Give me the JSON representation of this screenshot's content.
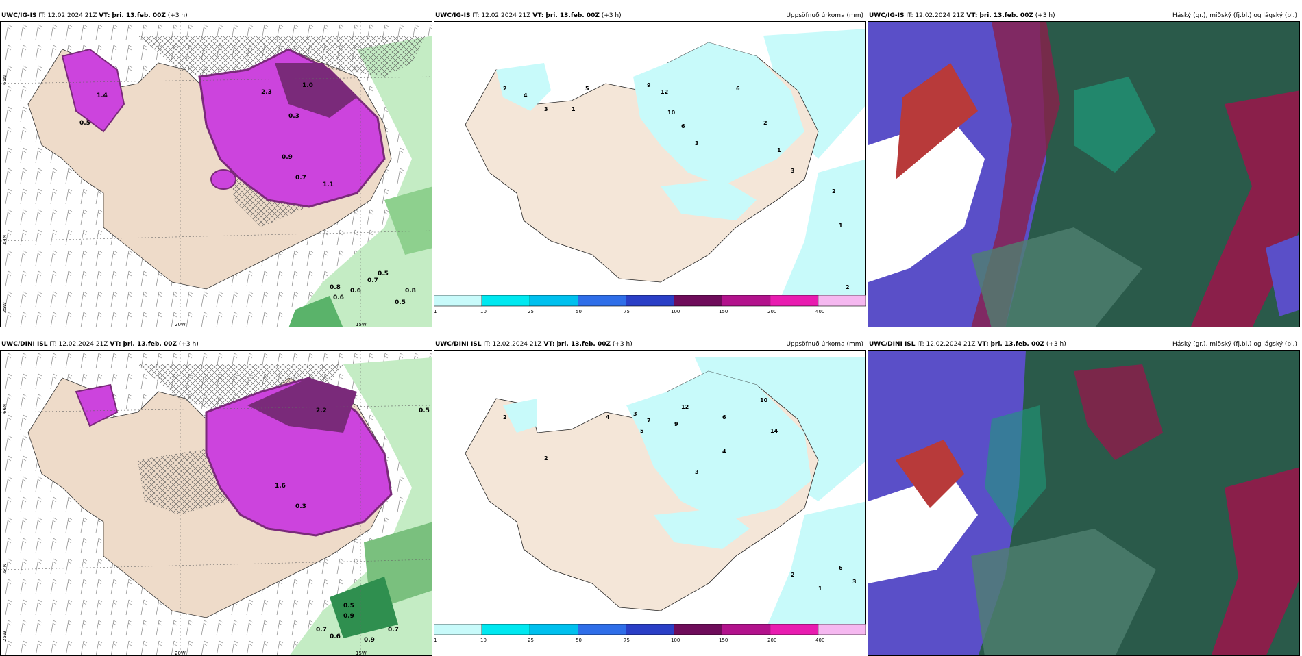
{
  "panels": {
    "top_left": {
      "model": "UWC/IG-IS",
      "it_label": "IT:",
      "it_value": "12.02.2024 21Z",
      "vt_label": "VT:",
      "vt_value": "þri. 13.feb. 00Z",
      "lead": "(+3 h)",
      "field": ""
    },
    "top_mid": {
      "model": "UWC/IG-IS",
      "it_label": "IT:",
      "it_value": "12.02.2024 21Z",
      "vt_label": "VT:",
      "vt_value": "þri. 13.feb. 00Z",
      "lead": "(+3 h)",
      "field": "Uppsöfnuð úrkoma (mm)"
    },
    "top_right": {
      "model": "UWC/IG-IS",
      "it_label": "IT:",
      "it_value": "12.02.2024 21Z",
      "vt_label": "VT:",
      "vt_value": "þri. 13.feb. 00Z",
      "lead": "(+3 h)",
      "field": "Háský (gr.), miðský (fj.bl.) og lágský (bl.)"
    },
    "bot_left": {
      "model": "UWC/DINI ISL",
      "it_label": "IT:",
      "it_value": "12.02.2024 21Z",
      "vt_label": "VT:",
      "vt_value": "þri. 13.feb. 00Z",
      "lead": "(+3 h)",
      "field": ""
    },
    "bot_mid": {
      "model": "UWC/DINI ISL",
      "it_label": "IT:",
      "it_value": "12.02.2024 21Z",
      "vt_label": "VT:",
      "vt_value": "þri. 13.feb. 00Z",
      "lead": "(+3 h)",
      "field": "Uppsöfnuð úrkoma (mm)"
    },
    "bot_right": {
      "model": "UWC/DINI ISL",
      "it_label": "IT:",
      "it_value": "12.02.2024 21Z",
      "vt_label": "VT:",
      "vt_value": "þri. 13.feb. 00Z",
      "lead": "(+3 h)",
      "field": "Háský (gr.), miðský (fj.bl.) og lágský (bl.)"
    }
  },
  "axes": {
    "lat_66": "66N",
    "lat_64": "64N",
    "lon_20": "20W",
    "lon_15": "15W",
    "lon_25": "25W"
  },
  "colorbar": {
    "ticks": [
      "1",
      "10",
      "25",
      "50",
      "75",
      "100",
      "150",
      "200",
      "400"
    ],
    "colors": [
      "#c8fafa",
      "#00e8f0",
      "#00c0ee",
      "#2f6ee8",
      "#2a3fc6",
      "#6e0c5a",
      "#b2128c",
      "#e81cb0",
      "#f5b8f0"
    ]
  },
  "colors": {
    "land": "#f4e6d8",
    "precip_light": "#b8f4f8",
    "snow_magenta": "#cc44dd",
    "snow_dark": "#7a2a7a",
    "rain_green": "#a6e6a6",
    "rain_dark": "#2f8f4f",
    "cloud_high": "#2a5a4a",
    "cloud_mid": "#5a4fc8",
    "cloud_low": "#8a1f4a"
  },
  "tl_labels": [
    "1.4",
    "0.5",
    "2.3",
    "1.0",
    "0.9",
    "0.7",
    "0.3",
    "1.1",
    "0.8",
    "0.6",
    "0.5",
    "0.7",
    "0.6",
    "0.5",
    "0.8"
  ],
  "bl_labels": [
    "0.5",
    "0.9",
    "0.7",
    "0.6",
    "0.9",
    "0.7",
    "1.6",
    "2.2",
    "0.3",
    "0.5"
  ],
  "mid_top_labels": [
    "2",
    "4",
    "3",
    "1",
    "5",
    "9",
    "12",
    "10",
    "6",
    "3",
    "6",
    "2",
    "1",
    "3",
    "2",
    "1",
    "2"
  ],
  "mid_bot_labels": [
    "2",
    "4",
    "3",
    "5",
    "7",
    "12",
    "9",
    "6",
    "10",
    "14",
    "4",
    "3",
    "2",
    "6",
    "1",
    "2",
    "3"
  ]
}
